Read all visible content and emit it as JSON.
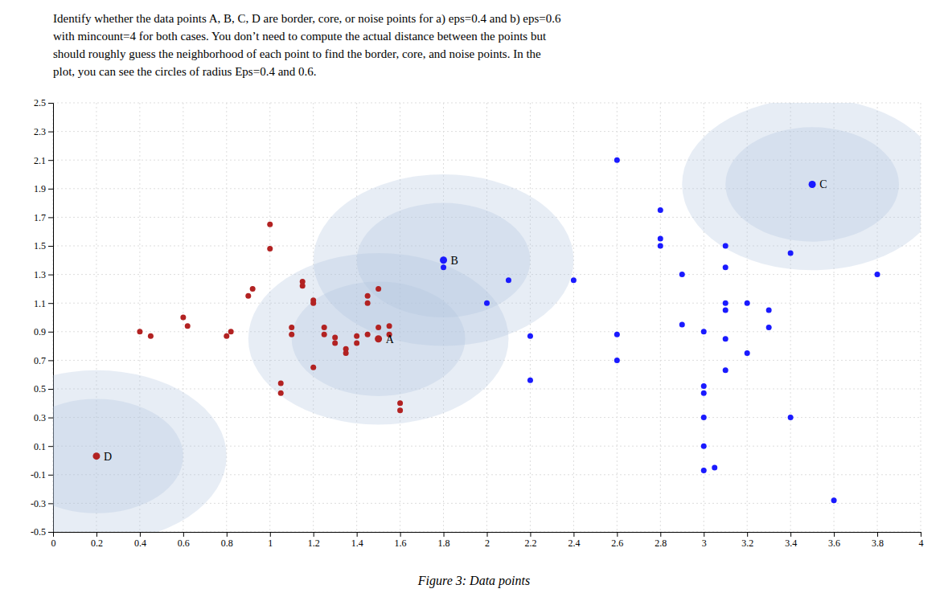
{
  "chart_data": {
    "type": "scatter",
    "title": "Figure 3: Data points",
    "subtitle": [
      "Identify whether the data points A, B, C, D are border, core, or noise points for a) eps=0.4 and b) eps=0.6",
      "with mincount=4 for both cases.  You don’t need to compute the actual distance between the points but",
      "should roughly guess the neighborhood of each point to find the border, core, and noise points.  In the",
      "plot, you can see the circles of radius Eps=0.4 and 0.6."
    ],
    "xlim": [
      0,
      4
    ],
    "ylim": [
      -0.5,
      2.5
    ],
    "xticks": [
      0,
      0.2,
      0.4,
      0.6,
      0.8,
      1,
      1.2,
      1.4,
      1.6,
      1.8,
      2,
      2.2,
      2.4,
      2.6,
      2.8,
      3,
      3.2,
      3.4,
      3.6,
      3.8,
      4
    ],
    "yticks": [
      -0.5,
      -0.3,
      -0.1,
      0.1,
      0.3,
      0.5,
      0.7,
      0.9,
      1.1,
      1.3,
      1.5,
      1.7,
      1.9,
      2.1,
      2.3,
      2.5
    ],
    "grid": true,
    "series": [
      {
        "type": "circle",
        "color": "lightsteelblue",
        "x": [
          1.5,
          1.5,
          1.8,
          1.8,
          3.5,
          3.5,
          0.2,
          0.2
        ],
        "values": [
          0.85,
          0.85,
          1.4,
          1.4,
          1.93,
          1.93,
          0.03,
          0.03
        ],
        "radius": [
          0.4,
          0.6,
          0.4,
          0.6,
          0.4,
          0.6,
          0.4,
          0.6
        ]
      },
      {
        "type": "scatter",
        "color": "#b22222",
        "x": [
          0.4,
          0.45,
          0.6,
          0.62,
          0.8,
          0.82,
          0.9,
          0.92,
          1.0,
          1.0,
          1.05,
          1.05,
          1.1,
          1.1,
          1.15,
          1.15,
          1.2,
          1.2,
          1.2,
          1.25,
          1.25,
          1.3,
          1.3,
          1.35,
          1.35,
          1.4,
          1.4,
          1.45,
          1.45,
          1.45,
          1.5,
          1.5,
          1.55,
          1.55,
          1.6,
          1.6
        ],
        "values": [
          0.9,
          0.87,
          1.0,
          0.94,
          0.87,
          0.9,
          1.15,
          1.2,
          1.65,
          1.48,
          0.54,
          0.47,
          0.88,
          0.93,
          1.22,
          1.25,
          0.65,
          1.1,
          1.12,
          0.88,
          0.93,
          0.82,
          0.86,
          0.75,
          0.78,
          0.82,
          0.87,
          0.88,
          1.1,
          1.15,
          0.93,
          1.2,
          0.88,
          0.94,
          0.35,
          0.4
        ]
      },
      {
        "type": "scatter",
        "color": "#1a1aff",
        "x": [
          1.8,
          2.0,
          2.1,
          2.2,
          2.2,
          2.4,
          2.6,
          2.6,
          2.6,
          2.8,
          2.8,
          2.8,
          2.9,
          2.9,
          3.0,
          3.0,
          3.0,
          3.0,
          3.0,
          3.0,
          3.05,
          3.1,
          3.1,
          3.1,
          3.1,
          3.1,
          3.1,
          3.2,
          3.2,
          3.3,
          3.3,
          3.4,
          3.4,
          3.6,
          3.8
        ],
        "values": [
          1.35,
          1.1,
          1.26,
          0.87,
          0.56,
          1.26,
          0.7,
          0.88,
          2.1,
          1.75,
          1.55,
          1.5,
          1.3,
          0.95,
          0.9,
          0.52,
          0.47,
          0.3,
          0.1,
          -0.07,
          -0.05,
          0.63,
          0.85,
          1.05,
          1.1,
          1.35,
          1.5,
          0.75,
          1.1,
          0.93,
          1.05,
          1.45,
          0.3,
          -0.28,
          1.3
        ]
      },
      {
        "type": "scatter",
        "colors": [
          "#b22222",
          "#1a1aff",
          "#1a1aff",
          "#b22222"
        ],
        "x": [
          1.5,
          1.8,
          3.5,
          0.2
        ],
        "values": [
          0.85,
          1.4,
          1.93,
          0.03
        ],
        "labels": [
          "A",
          "B",
          "C",
          "D"
        ]
      }
    ]
  }
}
